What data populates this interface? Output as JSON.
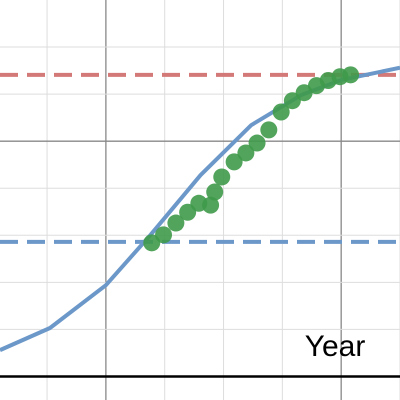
{
  "chart_data": {
    "type": "scatter",
    "x_label": "Year",
    "xlim": [
      -1.8,
      5.0
    ],
    "ylim": [
      -0.5,
      8
    ],
    "xticks": [
      -1,
      0,
      1,
      2,
      3,
      4,
      5
    ],
    "yticks": [
      1,
      2,
      3,
      4,
      5,
      6,
      7
    ],
    "x_major": [
      0,
      4
    ],
    "y_major": [
      5
    ],
    "grid": true,
    "hlines": [
      {
        "value": 6.41,
        "color": "#d37a78"
      },
      {
        "value": 2.86,
        "color": "#6b98c9"
      }
    ],
    "series": [
      {
        "style": "line",
        "color": "#6b98c9",
        "x": [
          -1.8,
          -0.95,
          0,
          0.76,
          1.61,
          2.47,
          3.32,
          4.0,
          5.0
        ],
        "values": [
          0.56,
          1.03,
          1.94,
          3.01,
          4.28,
          5.34,
          5.98,
          6.3,
          6.56
        ]
      },
      {
        "style": "points",
        "color": "#3f9a4a",
        "x": [
          0.78,
          0.98,
          1.19,
          1.39,
          1.58,
          1.78,
          1.85,
          1.97,
          2.18,
          2.38,
          2.57,
          2.77,
          2.98,
          3.17,
          3.37,
          3.58,
          3.78,
          3.98,
          4.16
        ],
        "values": [
          2.84,
          3.01,
          3.26,
          3.49,
          3.68,
          3.64,
          3.92,
          4.24,
          4.56,
          4.75,
          4.96,
          5.24,
          5.62,
          5.86,
          6.03,
          6.18,
          6.29,
          6.37,
          6.41
        ]
      }
    ]
  }
}
